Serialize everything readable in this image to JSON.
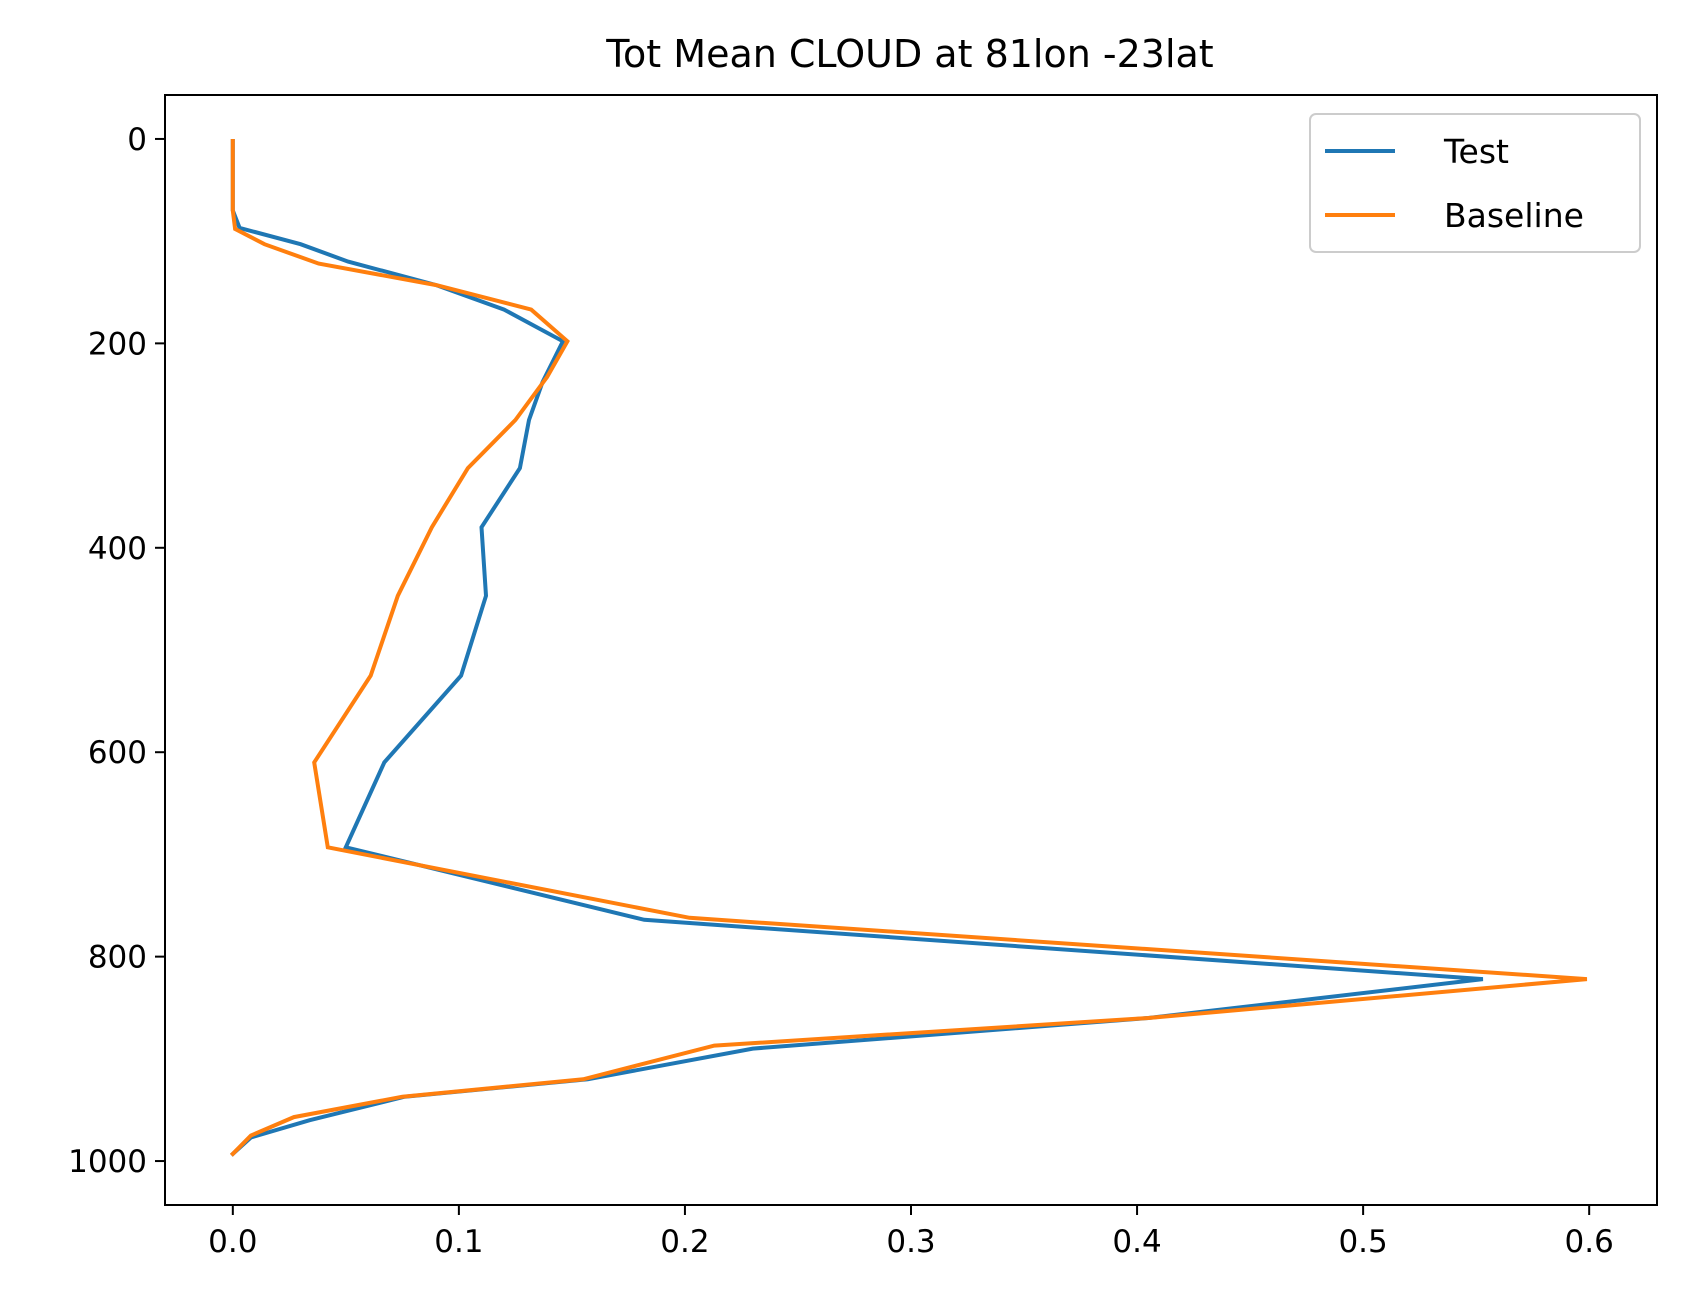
{
  "chart_data": {
    "type": "line",
    "title": "Tot Mean CLOUD at 81lon -23lat",
    "xlabel": "",
    "ylabel": "",
    "xlim": [
      -0.03,
      0.63
    ],
    "ylim": [
      1043,
      -43
    ],
    "y_inverted": true,
    "grid": false,
    "legend_position": "top-right",
    "x_ticks": [
      "0.0",
      "0.1",
      "0.2",
      "0.3",
      "0.4",
      "0.5",
      "0.6"
    ],
    "x_tick_values": [
      0,
      0.1,
      0.2,
      0.3,
      0.4,
      0.5,
      0.6
    ],
    "y_ticks": [
      "0",
      "200",
      "400",
      "600",
      "800",
      "1000"
    ],
    "y_tick_values": [
      0,
      200,
      400,
      600,
      800,
      1000
    ],
    "series": [
      {
        "name": "Test",
        "color": "#1f77b4",
        "x": [
          0.0,
          0.0,
          0.0,
          0.003,
          0.03,
          0.051,
          0.09,
          0.12,
          0.146,
          0.137,
          0.131,
          0.127,
          0.11,
          0.112,
          0.101,
          0.067,
          0.05,
          0.182,
          0.553,
          0.405,
          0.23,
          0.157,
          0.076,
          0.034,
          0.008,
          0.0
        ],
        "y": [
          2,
          40,
          70,
          87,
          103,
          120,
          143,
          167,
          198,
          238,
          275,
          322,
          380,
          447,
          525,
          610,
          693,
          764,
          822,
          860,
          890,
          920,
          937,
          960,
          977,
          993
        ]
      },
      {
        "name": "Baseline",
        "color": "#ff7f0e",
        "x": [
          0.0,
          0.0,
          0.0,
          0.001,
          0.014,
          0.038,
          0.09,
          0.132,
          0.148,
          0.139,
          0.125,
          0.104,
          0.088,
          0.073,
          0.061,
          0.036,
          0.042,
          0.202,
          0.599,
          0.405,
          0.213,
          0.155,
          0.075,
          0.027,
          0.008,
          0.0
        ],
        "y": [
          2,
          40,
          70,
          88,
          103,
          122,
          143,
          167,
          198,
          233,
          275,
          322,
          380,
          447,
          525,
          610,
          693,
          762,
          822,
          860,
          887,
          920,
          937,
          957,
          975,
          993
        ]
      }
    ]
  }
}
